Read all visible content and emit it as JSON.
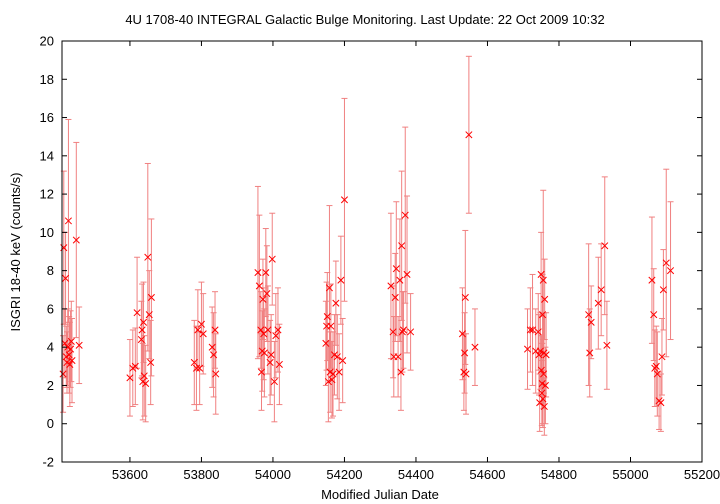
{
  "chart_data": {
    "type": "scatter",
    "title": "4U 1708-40   INTEGRAL Galactic Bulge Monitoring.  Last Update: 22 Oct 2009 10:32",
    "xlabel": "Modified Julian Date",
    "ylabel": "ISGRI 18-40 keV (counts/s)",
    "xlim": [
      53410,
      55200
    ],
    "ylim": [
      -2,
      20
    ],
    "xticks": [
      53600,
      53800,
      54000,
      54200,
      54400,
      54600,
      54800,
      55000,
      55200
    ],
    "yticks": [
      -2,
      0,
      2,
      4,
      6,
      8,
      10,
      12,
      14,
      16,
      18,
      20
    ],
    "grid": false,
    "legend": "none",
    "marker": "x",
    "color": "#ff0000",
    "errorbar_color": "#f08080",
    "series": [
      {
        "points": [
          [
            53413,
            2.6,
            2.0
          ],
          [
            53415,
            9.2,
            4.0
          ],
          [
            53418,
            4.2,
            1.8
          ],
          [
            53420,
            7.6,
            2.4
          ],
          [
            53422,
            3.5,
            1.6
          ],
          [
            53424,
            3.2,
            1.6
          ],
          [
            53426,
            4.0,
            2.0
          ],
          [
            53428,
            10.6,
            5.3
          ],
          [
            53430,
            3.6,
            2.0
          ],
          [
            53432,
            3.1,
            2.2
          ],
          [
            53434,
            3.9,
            2.0
          ],
          [
            53436,
            4.3,
            2.1
          ],
          [
            53438,
            3.3,
            2.2
          ],
          [
            53450,
            9.6,
            5.1
          ],
          [
            53458,
            4.1,
            2.0
          ],
          [
            53600,
            2.4,
            2.0
          ],
          [
            53608,
            2.9,
            2.0
          ],
          [
            53615,
            3.0,
            2.0
          ],
          [
            53620,
            5.8,
            2.9
          ],
          [
            53632,
            4.4,
            2.0
          ],
          [
            53634,
            4.9,
            2.4
          ],
          [
            53636,
            2.2,
            2.0
          ],
          [
            53638,
            5.3,
            2.1
          ],
          [
            53640,
            2.5,
            2.1
          ],
          [
            53644,
            2.1,
            2.0
          ],
          [
            53650,
            8.7,
            4.9
          ],
          [
            53654,
            5.7,
            2.3
          ],
          [
            53658,
            3.2,
            2.2
          ],
          [
            53660,
            6.6,
            4.1
          ],
          [
            53780,
            3.2,
            2.2
          ],
          [
            53786,
            2.9,
            2.2
          ],
          [
            53790,
            4.9,
            2.1
          ],
          [
            53795,
            2.9,
            1.9
          ],
          [
            53800,
            5.2,
            2.2
          ],
          [
            53805,
            4.7,
            2.1
          ],
          [
            53830,
            4.0,
            2.1
          ],
          [
            53834,
            3.6,
            2.2
          ],
          [
            53838,
            4.9,
            2.0
          ],
          [
            53840,
            2.6,
            2.1
          ],
          [
            53958,
            7.9,
            4.5
          ],
          [
            53962,
            7.2,
            3.7
          ],
          [
            53966,
            4.9,
            2.0
          ],
          [
            53968,
            2.7,
            2.0
          ],
          [
            53970,
            3.8,
            2.1
          ],
          [
            53972,
            6.5,
            2.1
          ],
          [
            53974,
            4.7,
            2.4
          ],
          [
            53976,
            3.7,
            2.3
          ],
          [
            53980,
            7.9,
            2.3
          ],
          [
            53983,
            6.8,
            2.5
          ],
          [
            53986,
            4.9,
            2.3
          ],
          [
            53992,
            3.2,
            2.2
          ],
          [
            53995,
            3.6,
            2.1
          ],
          [
            53998,
            8.6,
            2.4
          ],
          [
            54004,
            2.2,
            2.1
          ],
          [
            54008,
            4.6,
            2.2
          ],
          [
            54014,
            4.9,
            2.2
          ],
          [
            54018,
            3.1,
            2.1
          ],
          [
            54148,
            4.2,
            2.2
          ],
          [
            54150,
            5.1,
            2.3
          ],
          [
            54152,
            5.6,
            2.3
          ],
          [
            54155,
            2.2,
            2.1
          ],
          [
            54158,
            7.1,
            4.3
          ],
          [
            54160,
            2.7,
            2.1
          ],
          [
            54162,
            5.1,
            2.2
          ],
          [
            54165,
            2.3,
            2.0
          ],
          [
            54168,
            2.6,
            2.2
          ],
          [
            54172,
            3.6,
            2.1
          ],
          [
            54176,
            6.3,
            2.2
          ],
          [
            54180,
            3.5,
            2.2
          ],
          [
            54185,
            2.7,
            2.0
          ],
          [
            54190,
            7.5,
            2.3
          ],
          [
            54195,
            3.3,
            2.2
          ],
          [
            54200,
            11.7,
            5.3
          ],
          [
            54330,
            7.2,
            3.8
          ],
          [
            54336,
            4.8,
            2.4
          ],
          [
            54338,
            3.5,
            2.1
          ],
          [
            54342,
            6.6,
            2.3
          ],
          [
            54345,
            8.1,
            3.5
          ],
          [
            54350,
            3.5,
            2.1
          ],
          [
            54355,
            7.5,
            3.2
          ],
          [
            54358,
            2.7,
            2.0
          ],
          [
            54360,
            9.3,
            3.9
          ],
          [
            54362,
            4.8,
            2.1
          ],
          [
            54365,
            4.9,
            2.0
          ],
          [
            54370,
            10.9,
            4.6
          ],
          [
            54375,
            7.8,
            4.1
          ],
          [
            54385,
            4.8,
            2.0
          ],
          [
            54530,
            4.7,
            2.4
          ],
          [
            54534,
            2.7,
            2.0
          ],
          [
            54536,
            3.7,
            2.1
          ],
          [
            54538,
            6.6,
            3.5
          ],
          [
            54540,
            2.6,
            2.1
          ],
          [
            54548,
            15.1,
            4.1
          ],
          [
            54565,
            4.0,
            2.0
          ],
          [
            54712,
            3.9,
            2.1
          ],
          [
            54720,
            4.9,
            2.2
          ],
          [
            54726,
            4.9,
            2.9
          ],
          [
            54735,
            3.8,
            2.2
          ],
          [
            54742,
            4.8,
            2.0
          ],
          [
            54744,
            3.6,
            2.1
          ],
          [
            54746,
            1.1,
            1.5
          ],
          [
            54748,
            3.8,
            2.0
          ],
          [
            54750,
            7.8,
            2.2
          ],
          [
            54752,
            1.6,
            1.7
          ],
          [
            54754,
            5.7,
            2.1
          ],
          [
            54756,
            7.5,
            4.7
          ],
          [
            54758,
            3.7,
            2.1
          ],
          [
            54760,
            6.5,
            2.1
          ],
          [
            54762,
            2.0,
            2.0
          ],
          [
            54764,
            3.6,
            2.2
          ],
          [
            54751,
            2.8,
            1.8
          ],
          [
            54753,
            2.1,
            2.1
          ],
          [
            54755,
            1.3,
            1.5
          ],
          [
            54757,
            2.6,
            1.8
          ],
          [
            54759,
            0.9,
            1.5
          ],
          [
            54883,
            5.7,
            3.7
          ],
          [
            54886,
            3.7,
            2.3
          ],
          [
            54890,
            5.3,
            1.9
          ],
          [
            54910,
            6.3,
            2.4
          ],
          [
            54918,
            7.0,
            2.4
          ],
          [
            54928,
            9.3,
            3.6
          ],
          [
            54934,
            4.1,
            2.3
          ],
          [
            55060,
            7.5,
            3.3
          ],
          [
            55065,
            5.7,
            2.4
          ],
          [
            55068,
            2.9,
            2.0
          ],
          [
            55072,
            3.0,
            2.1
          ],
          [
            55075,
            2.6,
            2.2
          ],
          [
            55080,
            1.2,
            1.5
          ],
          [
            55085,
            1.1,
            1.5
          ],
          [
            55088,
            3.5,
            2.0
          ],
          [
            55092,
            7.0,
            2.1
          ],
          [
            55100,
            8.4,
            4.9
          ],
          [
            55112,
            8.0,
            3.6
          ]
        ]
      }
    ]
  }
}
